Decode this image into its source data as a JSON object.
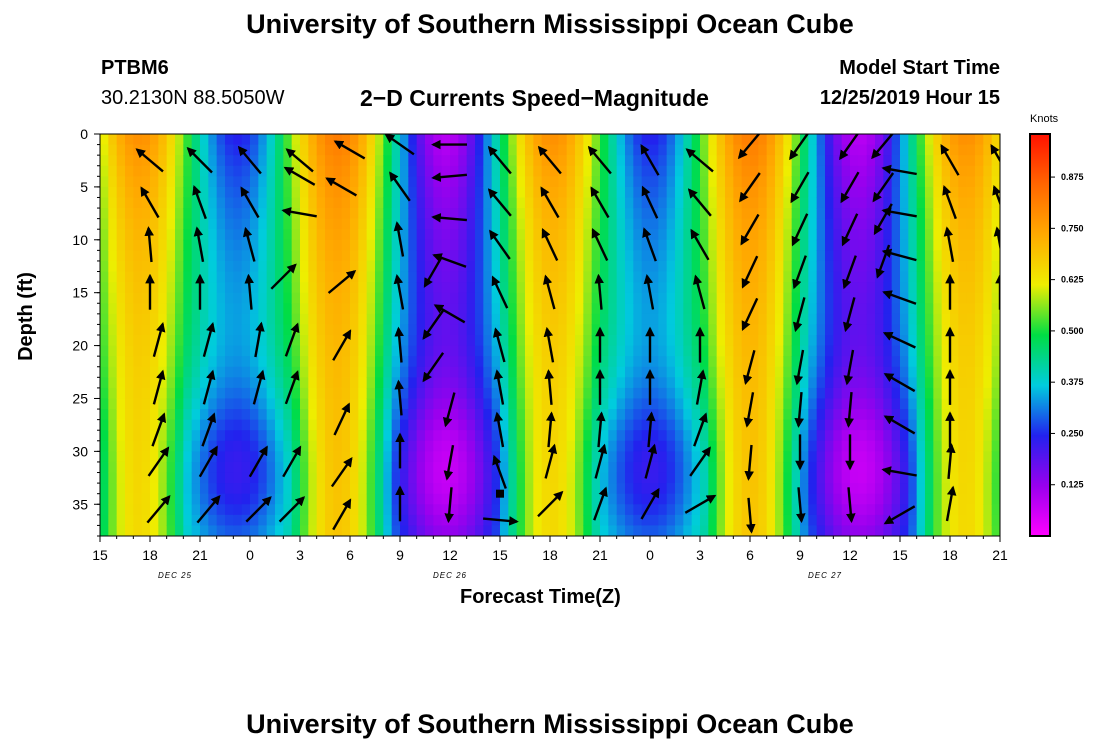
{
  "header": {
    "top_title": "University of Southern Mississippi Ocean Cube",
    "bottom_title": "University of Southern Mississippi Ocean Cube",
    "station": "PTBM6",
    "coordinates": "30.2130N 88.5050W",
    "center_title": "2−D Currents Speed−Magnitude",
    "model_start_label": "Model Start Time",
    "model_start_value": "12/25/2019 Hour 15"
  },
  "colorbar": {
    "unit": "Knots",
    "ticks": [
      {
        "value": 0.125,
        "label": "0.125"
      },
      {
        "value": 0.25,
        "label": "0.250"
      },
      {
        "value": 0.375,
        "label": "0.375"
      },
      {
        "value": 0.5,
        "label": "0.500"
      },
      {
        "value": 0.625,
        "label": "0.625"
      },
      {
        "value": 0.75,
        "label": "0.750"
      },
      {
        "value": 0.875,
        "label": "0.875"
      }
    ],
    "range": [
      0,
      0.98
    ],
    "colors": [
      "#ff00ff",
      "#9900ee",
      "#2222ee",
      "#00ccdd",
      "#00dd44",
      "#eeee00",
      "#ffaa00",
      "#ff6600",
      "#ff1100"
    ]
  },
  "chart_data": {
    "type": "heatmap",
    "xlabel": "Forecast Time(Z)",
    "ylabel": "Depth (ft)",
    "x_ticks": [
      "15",
      "18",
      "21",
      "0",
      "3",
      "6",
      "9",
      "12",
      "15",
      "18",
      "21",
      "0",
      "3",
      "6",
      "9",
      "12",
      "15",
      "18",
      "21"
    ],
    "x_range_hours": [
      0,
      54
    ],
    "date_labels": [
      {
        "hour": 4.5,
        "label": "DEC 25"
      },
      {
        "hour": 21,
        "label": "DEC 26"
      },
      {
        "hour": 43.5,
        "label": "DEC 27"
      }
    ],
    "y_ticks": [
      0,
      5,
      10,
      15,
      20,
      25,
      30,
      35
    ],
    "y_range": [
      0,
      38
    ],
    "y_reversed": true,
    "marker": {
      "hour": 24,
      "depth": 34
    },
    "arrows": [
      {
        "hour": 3,
        "depth": 2.5,
        "angle": 310
      },
      {
        "hour": 6,
        "depth": 2.5,
        "angle": 315
      },
      {
        "hour": 9,
        "depth": 2.5,
        "angle": 320
      },
      {
        "hour": 12,
        "depth": 2.5,
        "angle": 310
      },
      {
        "hour": 3,
        "depth": 6.5,
        "angle": 330
      },
      {
        "hour": 6,
        "depth": 6.5,
        "angle": 340
      },
      {
        "hour": 9,
        "depth": 6.5,
        "angle": 330
      },
      {
        "hour": 12,
        "depth": 4,
        "angle": 300
      },
      {
        "hour": 12,
        "depth": 7.5,
        "angle": 280
      },
      {
        "hour": 3,
        "depth": 10.5,
        "angle": 355
      },
      {
        "hour": 6,
        "depth": 10.5,
        "angle": 350
      },
      {
        "hour": 9,
        "depth": 10.5,
        "angle": 345
      },
      {
        "hour": 3,
        "depth": 15,
        "angle": 0
      },
      {
        "hour": 6,
        "depth": 15,
        "angle": 0
      },
      {
        "hour": 9,
        "depth": 15,
        "angle": 355
      },
      {
        "hour": 11,
        "depth": 13.5,
        "angle": 45
      },
      {
        "hour": 3.5,
        "depth": 19.5,
        "angle": 15
      },
      {
        "hour": 6.5,
        "depth": 19.5,
        "angle": 15
      },
      {
        "hour": 9.5,
        "depth": 19.5,
        "angle": 10
      },
      {
        "hour": 11.5,
        "depth": 19.5,
        "angle": 20
      },
      {
        "hour": 3.5,
        "depth": 24,
        "angle": 15
      },
      {
        "hour": 6.5,
        "depth": 24,
        "angle": 15
      },
      {
        "hour": 9.5,
        "depth": 24,
        "angle": 15
      },
      {
        "hour": 11.5,
        "depth": 24,
        "angle": 20
      },
      {
        "hour": 3.5,
        "depth": 28,
        "angle": 20
      },
      {
        "hour": 6.5,
        "depth": 28,
        "angle": 20
      },
      {
        "hour": 9.5,
        "depth": 31,
        "angle": 30
      },
      {
        "hour": 3.5,
        "depth": 31,
        "angle": 35
      },
      {
        "hour": 6.5,
        "depth": 31,
        "angle": 30
      },
      {
        "hour": 3.5,
        "depth": 35.5,
        "angle": 40
      },
      {
        "hour": 6.5,
        "depth": 35.5,
        "angle": 40
      },
      {
        "hour": 9.5,
        "depth": 35.5,
        "angle": 45
      },
      {
        "hour": 11.5,
        "depth": 31,
        "angle": 30
      },
      {
        "hour": 11.5,
        "depth": 35.5,
        "angle": 45
      },
      {
        "hour": 14.5,
        "depth": 20,
        "angle": 30
      },
      {
        "hour": 14.5,
        "depth": 27,
        "angle": 25
      },
      {
        "hour": 14.5,
        "depth": 32,
        "angle": 35
      },
      {
        "hour": 14.5,
        "depth": 36,
        "angle": 30
      },
      {
        "hour": 14.5,
        "depth": 14,
        "angle": 50
      },
      {
        "hour": 14.5,
        "depth": 5,
        "angle": 300
      },
      {
        "hour": 15,
        "depth": 1.5,
        "angle": 300
      },
      {
        "hour": 18,
        "depth": 1,
        "angle": 305
      },
      {
        "hour": 18,
        "depth": 5,
        "angle": 325
      },
      {
        "hour": 18,
        "depth": 10,
        "angle": 350
      },
      {
        "hour": 18,
        "depth": 15,
        "angle": 350
      },
      {
        "hour": 18,
        "depth": 20,
        "angle": 355
      },
      {
        "hour": 18,
        "depth": 25,
        "angle": 355
      },
      {
        "hour": 18,
        "depth": 30,
        "angle": 0
      },
      {
        "hour": 18,
        "depth": 35,
        "angle": 0
      },
      {
        "hour": 20,
        "depth": 13,
        "angle": 210
      },
      {
        "hour": 20,
        "depth": 18,
        "angle": 215
      },
      {
        "hour": 20,
        "depth": 22,
        "angle": 215
      },
      {
        "hour": 21,
        "depth": 26,
        "angle": 195
      },
      {
        "hour": 21,
        "depth": 31,
        "angle": 190
      },
      {
        "hour": 21,
        "depth": 35,
        "angle": 185
      },
      {
        "hour": 21,
        "depth": 1,
        "angle": 270
      },
      {
        "hour": 21,
        "depth": 4,
        "angle": 265
      },
      {
        "hour": 21,
        "depth": 8,
        "angle": 275
      },
      {
        "hour": 21,
        "depth": 12,
        "angle": 290
      },
      {
        "hour": 21,
        "depth": 17,
        "angle": 300
      },
      {
        "hour": 24,
        "depth": 2.5,
        "angle": 320
      },
      {
        "hour": 24,
        "depth": 6.5,
        "angle": 320
      },
      {
        "hour": 24,
        "depth": 10.5,
        "angle": 325
      },
      {
        "hour": 24,
        "depth": 15,
        "angle": 335
      },
      {
        "hour": 24,
        "depth": 20,
        "angle": 345
      },
      {
        "hour": 24,
        "depth": 24,
        "angle": 350
      },
      {
        "hour": 24,
        "depth": 28,
        "angle": 350
      },
      {
        "hour": 24,
        "depth": 32,
        "angle": 340
      },
      {
        "hour": 24,
        "depth": 36.5,
        "angle": 95
      },
      {
        "hour": 27,
        "depth": 2.5,
        "angle": 320
      },
      {
        "hour": 27,
        "depth": 6.5,
        "angle": 330
      },
      {
        "hour": 27,
        "depth": 10.5,
        "angle": 335
      },
      {
        "hour": 27,
        "depth": 15,
        "angle": 345
      },
      {
        "hour": 27,
        "depth": 20,
        "angle": 350
      },
      {
        "hour": 27,
        "depth": 24,
        "angle": 355
      },
      {
        "hour": 27,
        "depth": 28,
        "angle": 5
      },
      {
        "hour": 27,
        "depth": 31,
        "angle": 15
      },
      {
        "hour": 27,
        "depth": 35,
        "angle": 45
      },
      {
        "hour": 30,
        "depth": 2.5,
        "angle": 320
      },
      {
        "hour": 30,
        "depth": 6.5,
        "angle": 330
      },
      {
        "hour": 30,
        "depth": 10.5,
        "angle": 335
      },
      {
        "hour": 30,
        "depth": 15,
        "angle": 355
      },
      {
        "hour": 30,
        "depth": 20,
        "angle": 0
      },
      {
        "hour": 30,
        "depth": 24,
        "angle": 0
      },
      {
        "hour": 30,
        "depth": 28,
        "angle": 5
      },
      {
        "hour": 30,
        "depth": 31,
        "angle": 15
      },
      {
        "hour": 30,
        "depth": 35,
        "angle": 20
      },
      {
        "hour": 33,
        "depth": 2.5,
        "angle": 330
      },
      {
        "hour": 33,
        "depth": 6.5,
        "angle": 335
      },
      {
        "hour": 33,
        "depth": 10.5,
        "angle": 340
      },
      {
        "hour": 33,
        "depth": 15,
        "angle": 350
      },
      {
        "hour": 33,
        "depth": 20,
        "angle": 0
      },
      {
        "hour": 33,
        "depth": 24,
        "angle": 0
      },
      {
        "hour": 33,
        "depth": 28,
        "angle": 5
      },
      {
        "hour": 33,
        "depth": 31,
        "angle": 15
      },
      {
        "hour": 33,
        "depth": 35,
        "angle": 30
      },
      {
        "hour": 36,
        "depth": 2.5,
        "angle": 310
      },
      {
        "hour": 36,
        "depth": 6.5,
        "angle": 320
      },
      {
        "hour": 36,
        "depth": 10.5,
        "angle": 330
      },
      {
        "hour": 36,
        "depth": 15,
        "angle": 345
      },
      {
        "hour": 36,
        "depth": 20,
        "angle": 0
      },
      {
        "hour": 36,
        "depth": 24,
        "angle": 10
      },
      {
        "hour": 36,
        "depth": 28,
        "angle": 20
      },
      {
        "hour": 36,
        "depth": 31,
        "angle": 35
      },
      {
        "hour": 36,
        "depth": 35,
        "angle": 60
      },
      {
        "hour": 39,
        "depth": 1,
        "angle": 220
      },
      {
        "hour": 39,
        "depth": 5,
        "angle": 215
      },
      {
        "hour": 39,
        "depth": 9,
        "angle": 210
      },
      {
        "hour": 39,
        "depth": 13,
        "angle": 205
      },
      {
        "hour": 39,
        "depth": 17,
        "angle": 205
      },
      {
        "hour": 39,
        "depth": 22,
        "angle": 195
      },
      {
        "hour": 39,
        "depth": 26,
        "angle": 190
      },
      {
        "hour": 39,
        "depth": 31,
        "angle": 185
      },
      {
        "hour": 39,
        "depth": 36,
        "angle": 175
      },
      {
        "hour": 42,
        "depth": 1,
        "angle": 215
      },
      {
        "hour": 42,
        "depth": 5,
        "angle": 210
      },
      {
        "hour": 42,
        "depth": 9,
        "angle": 205
      },
      {
        "hour": 42,
        "depth": 13,
        "angle": 200
      },
      {
        "hour": 42,
        "depth": 17,
        "angle": 195
      },
      {
        "hour": 42,
        "depth": 22,
        "angle": 190
      },
      {
        "hour": 42,
        "depth": 26,
        "angle": 185
      },
      {
        "hour": 42,
        "depth": 30,
        "angle": 180
      },
      {
        "hour": 42,
        "depth": 35,
        "angle": 175
      },
      {
        "hour": 45,
        "depth": 1,
        "angle": 215
      },
      {
        "hour": 45,
        "depth": 5,
        "angle": 210
      },
      {
        "hour": 45,
        "depth": 9,
        "angle": 205
      },
      {
        "hour": 45,
        "depth": 13,
        "angle": 200
      },
      {
        "hour": 45,
        "depth": 17,
        "angle": 195
      },
      {
        "hour": 45,
        "depth": 22,
        "angle": 190
      },
      {
        "hour": 45,
        "depth": 26,
        "angle": 185
      },
      {
        "hour": 45,
        "depth": 30,
        "angle": 180
      },
      {
        "hour": 45,
        "depth": 35,
        "angle": 175
      },
      {
        "hour": 47,
        "depth": 1,
        "angle": 220
      },
      {
        "hour": 47,
        "depth": 5,
        "angle": 215
      },
      {
        "hour": 47,
        "depth": 8,
        "angle": 210
      },
      {
        "hour": 47,
        "depth": 12,
        "angle": 200
      },
      {
        "hour": 48,
        "depth": 3.5,
        "angle": 280
      },
      {
        "hour": 48,
        "depth": 7.5,
        "angle": 280
      },
      {
        "hour": 48,
        "depth": 11.5,
        "angle": 285
      },
      {
        "hour": 48,
        "depth": 15.5,
        "angle": 290
      },
      {
        "hour": 48,
        "depth": 19.5,
        "angle": 295
      },
      {
        "hour": 48,
        "depth": 23.5,
        "angle": 300
      },
      {
        "hour": 48,
        "depth": 27.5,
        "angle": 300
      },
      {
        "hour": 48,
        "depth": 32,
        "angle": 280
      },
      {
        "hour": 48,
        "depth": 36,
        "angle": 240
      },
      {
        "hour": 51,
        "depth": 2.5,
        "angle": 330
      },
      {
        "hour": 51,
        "depth": 6.5,
        "angle": 340
      },
      {
        "hour": 51,
        "depth": 10.5,
        "angle": 350
      },
      {
        "hour": 51,
        "depth": 15,
        "angle": 0
      },
      {
        "hour": 51,
        "depth": 20,
        "angle": 0
      },
      {
        "hour": 51,
        "depth": 24,
        "angle": 0
      },
      {
        "hour": 51,
        "depth": 28,
        "angle": 0
      },
      {
        "hour": 51,
        "depth": 31,
        "angle": 5
      },
      {
        "hour": 51,
        "depth": 35,
        "angle": 10
      },
      {
        "hour": 54,
        "depth": 2.5,
        "angle": 330
      },
      {
        "hour": 54,
        "depth": 6.5,
        "angle": 340
      },
      {
        "hour": 54,
        "depth": 10.5,
        "angle": 350
      },
      {
        "hour": 54,
        "depth": 15,
        "angle": 0
      }
    ]
  }
}
